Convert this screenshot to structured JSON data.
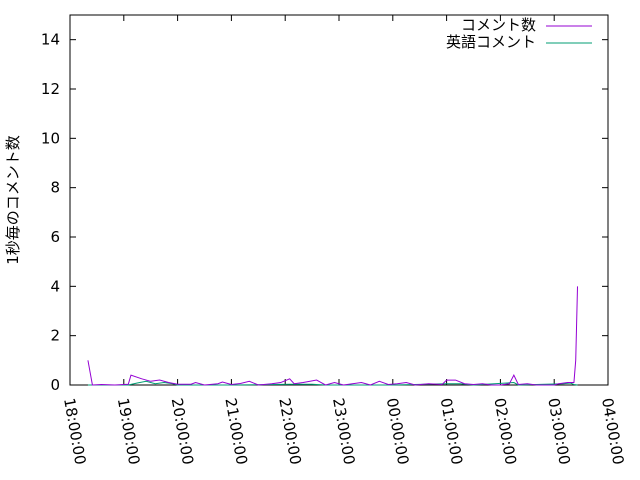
{
  "chart_data": {
    "type": "line",
    "title": "",
    "xlabel": "",
    "ylabel": "1秒毎のコメント数",
    "xlim": [
      "18:00:00",
      "04:00:00"
    ],
    "ylim": [
      0,
      15
    ],
    "x_ticks": [
      "18:00:00",
      "19:00:00",
      "20:00:00",
      "21:00:00",
      "22:00:00",
      "23:00:00",
      "00:00:00",
      "01:00:00",
      "02:00:00",
      "03:00:00",
      "04:00:00"
    ],
    "y_ticks": [
      "0",
      "2",
      "4",
      "6",
      "8",
      "10",
      "12",
      "14"
    ],
    "y_tick_values": [
      0,
      2,
      4,
      6,
      8,
      10,
      12,
      14
    ],
    "grid": false,
    "legend_position": "top-right",
    "series": [
      {
        "name": "コメント数",
        "color": "#9400d3",
        "points": [
          [
            "18:20",
            1.0
          ],
          [
            "18:25",
            0
          ],
          [
            "18:35",
            0.02
          ],
          [
            "18:50",
            0
          ],
          [
            "19:05",
            0.03
          ],
          [
            "19:08",
            0.4
          ],
          [
            "19:20",
            0.25
          ],
          [
            "19:30",
            0.15
          ],
          [
            "19:40",
            0.2
          ],
          [
            "19:50",
            0.1
          ],
          [
            "20:00",
            0.03
          ],
          [
            "20:15",
            0.03
          ],
          [
            "20:20",
            0.1
          ],
          [
            "20:30",
            0
          ],
          [
            "20:45",
            0.05
          ],
          [
            "20:50",
            0.12
          ],
          [
            "21:00",
            0.02
          ],
          [
            "21:10",
            0.06
          ],
          [
            "21:20",
            0.15
          ],
          [
            "21:30",
            0
          ],
          [
            "21:45",
            0.05
          ],
          [
            "21:55",
            0.1
          ],
          [
            "22:05",
            0.25
          ],
          [
            "22:10",
            0.05
          ],
          [
            "22:20",
            0.1
          ],
          [
            "22:35",
            0.2
          ],
          [
            "22:45",
            0
          ],
          [
            "22:55",
            0.1
          ],
          [
            "23:05",
            0
          ],
          [
            "23:15",
            0.05
          ],
          [
            "23:25",
            0.1
          ],
          [
            "23:35",
            0
          ],
          [
            "23:45",
            0.15
          ],
          [
            "23:55",
            0.02
          ],
          [
            "00:05",
            0.05
          ],
          [
            "00:15",
            0.1
          ],
          [
            "00:25",
            0
          ],
          [
            "00:40",
            0.05
          ],
          [
            "00:55",
            0.02
          ],
          [
            "01:00",
            0.2
          ],
          [
            "01:10",
            0.2
          ],
          [
            "01:20",
            0.05
          ],
          [
            "01:30",
            0.02
          ],
          [
            "01:40",
            0.05
          ],
          [
            "01:50",
            0
          ],
          [
            "02:00",
            0
          ],
          [
            "02:10",
            0.05
          ],
          [
            "02:15",
            0.4
          ],
          [
            "02:20",
            0.02
          ],
          [
            "02:30",
            0.05
          ],
          [
            "02:40",
            0
          ],
          [
            "02:50",
            0
          ],
          [
            "03:00",
            0
          ],
          [
            "03:05",
            0.05
          ],
          [
            "03:15",
            0.1
          ],
          [
            "03:22",
            0.1
          ],
          [
            "03:24",
            1.0
          ],
          [
            "03:26",
            4.0
          ]
        ]
      },
      {
        "name": "英語コメント",
        "color": "#009e73",
        "points": [
          [
            "18:20",
            0
          ],
          [
            "18:50",
            0
          ],
          [
            "19:05",
            0
          ],
          [
            "19:15",
            0.08
          ],
          [
            "19:25",
            0.15
          ],
          [
            "19:35",
            0.05
          ],
          [
            "19:45",
            0.1
          ],
          [
            "19:55",
            0.05
          ],
          [
            "20:00",
            0
          ],
          [
            "21:00",
            0
          ],
          [
            "22:05",
            0.03
          ],
          [
            "22:30",
            0.03
          ],
          [
            "22:45",
            0
          ],
          [
            "23:45",
            0
          ],
          [
            "00:00",
            0
          ],
          [
            "01:00",
            0.05
          ],
          [
            "01:15",
            0.05
          ],
          [
            "01:30",
            0
          ],
          [
            "02:15",
            0.1
          ],
          [
            "02:20",
            0
          ],
          [
            "03:10",
            0.05
          ],
          [
            "03:18",
            0.08
          ],
          [
            "03:22",
            0.02
          ],
          [
            "03:26",
            0
          ]
        ]
      }
    ]
  }
}
